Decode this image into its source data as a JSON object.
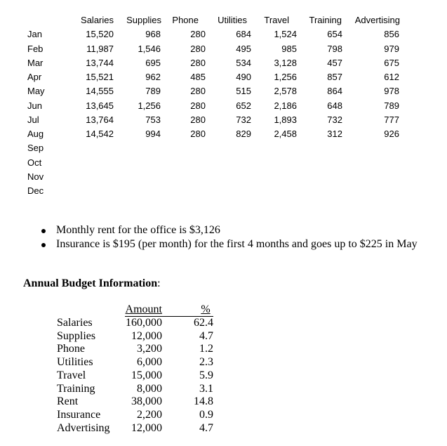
{
  "monthly_table": {
    "headers": [
      "Salaries",
      "Supplies",
      "Phone",
      "Utilities",
      "Travel",
      "Training",
      "Advertising"
    ],
    "months": [
      "Jan",
      "Feb",
      "Mar",
      "Apr",
      "May",
      "Jun",
      "Jul",
      "Aug",
      "Sep",
      "Oct",
      "Nov",
      "Dec"
    ],
    "rows": [
      [
        "15,520",
        "968",
        "280",
        "684",
        "1,524",
        "654",
        "856"
      ],
      [
        "11,987",
        "1,546",
        "280",
        "495",
        "985",
        "798",
        "979"
      ],
      [
        "13,744",
        "695",
        "280",
        "534",
        "3,128",
        "457",
        "675"
      ],
      [
        "15,521",
        "962",
        "485",
        "490",
        "1,256",
        "857",
        "612"
      ],
      [
        "14,555",
        "789",
        "280",
        "515",
        "2,578",
        "864",
        "978"
      ],
      [
        "13,645",
        "1,256",
        "280",
        "652",
        "2,186",
        "648",
        "789"
      ],
      [
        "13,764",
        "753",
        "280",
        "732",
        "1,893",
        "732",
        "777"
      ],
      [
        "14,542",
        "994",
        "280",
        "829",
        "2,458",
        "312",
        "926"
      ]
    ]
  },
  "bullets": [
    "Monthly rent for the office is $3,126",
    "Insurance is $195 (per month) for the first 4 months and goes up to $225 in May"
  ],
  "annual": {
    "heading": "Annual Budget Information",
    "heading_suffix": ":",
    "col_amount": "Amount",
    "col_percent": "%",
    "rows": [
      {
        "label": "Salaries",
        "amount": "160,000",
        "percent": "62.4"
      },
      {
        "label": "Supplies",
        "amount": "12,000",
        "percent": "4.7"
      },
      {
        "label": "Phone",
        "amount": "3,200",
        "percent": "1.2"
      },
      {
        "label": "Utilities",
        "amount": "6,000",
        "percent": "2.3"
      },
      {
        "label": "Travel",
        "amount": "15,000",
        "percent": "5.9"
      },
      {
        "label": "Training",
        "amount": "8,000",
        "percent": "3.1"
      },
      {
        "label": "Rent",
        "amount": "38,000",
        "percent": "14.8"
      },
      {
        "label": "Insurance",
        "amount": "2,200",
        "percent": "0.9"
      },
      {
        "label": "Advertising",
        "amount": "12,000",
        "percent": "4.7"
      }
    ]
  }
}
